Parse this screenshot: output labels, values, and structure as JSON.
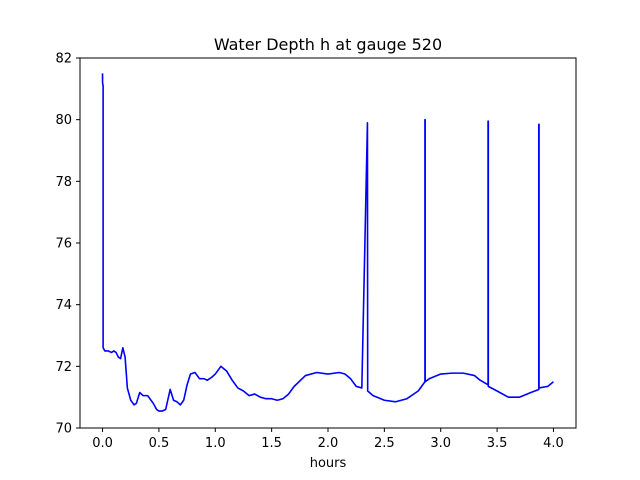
{
  "chart_data": {
    "type": "line",
    "title": "Water Depth h at gauge 520",
    "xlabel": "hours",
    "ylabel": "",
    "xlim": [
      -0.2,
      4.2
    ],
    "ylim": [
      70,
      82
    ],
    "xticks": [
      0.0,
      0.5,
      1.0,
      1.5,
      2.0,
      2.5,
      3.0,
      3.5,
      4.0
    ],
    "xtick_labels": [
      "0.0",
      "0.5",
      "1.0",
      "1.5",
      "2.0",
      "2.5",
      "3.0",
      "3.5",
      "4.0"
    ],
    "yticks": [
      70,
      72,
      74,
      76,
      78,
      80,
      82
    ],
    "ytick_labels": [
      "70",
      "72",
      "74",
      "76",
      "78",
      "80",
      "82"
    ],
    "grid": false,
    "legend": "none",
    "series": [
      {
        "color": "#0000ff",
        "x": [
          0.0,
          0.0,
          0.005,
          0.005,
          0.006,
          0.02,
          0.05,
          0.08,
          0.1,
          0.12,
          0.14,
          0.16,
          0.18,
          0.2,
          0.22,
          0.25,
          0.28,
          0.3,
          0.33,
          0.36,
          0.4,
          0.45,
          0.48,
          0.5,
          0.53,
          0.56,
          0.6,
          0.63,
          0.66,
          0.69,
          0.72,
          0.75,
          0.78,
          0.82,
          0.86,
          0.9,
          0.93,
          0.97,
          1.0,
          1.05,
          1.1,
          1.15,
          1.2,
          1.25,
          1.3,
          1.35,
          1.4,
          1.45,
          1.5,
          1.55,
          1.6,
          1.65,
          1.7,
          1.8,
          1.9,
          2.0,
          2.1,
          2.15,
          2.2,
          2.25,
          2.3,
          2.35,
          2.35,
          2.352,
          2.352,
          2.4,
          2.5,
          2.6,
          2.7,
          2.8,
          2.86,
          2.86,
          2.862,
          2.862,
          2.9,
          3.0,
          3.1,
          3.2,
          3.3,
          3.35,
          3.42,
          3.42,
          3.422,
          3.422,
          3.5,
          3.6,
          3.7,
          3.8,
          3.87,
          3.87,
          3.872,
          3.872,
          3.95,
          4.0
        ],
        "y": [
          81.5,
          81.2,
          81.1,
          72.6,
          72.6,
          72.5,
          72.5,
          72.45,
          72.5,
          72.45,
          72.3,
          72.25,
          72.6,
          72.3,
          71.3,
          70.9,
          70.75,
          70.8,
          71.15,
          71.05,
          71.05,
          70.8,
          70.6,
          70.55,
          70.55,
          70.6,
          71.25,
          70.9,
          70.85,
          70.75,
          70.9,
          71.4,
          71.75,
          71.8,
          71.6,
          71.6,
          71.55,
          71.65,
          71.75,
          72.0,
          71.85,
          71.55,
          71.3,
          71.2,
          71.05,
          71.1,
          71.0,
          70.95,
          70.95,
          70.9,
          70.95,
          71.1,
          71.35,
          71.7,
          71.8,
          71.75,
          71.8,
          71.75,
          71.6,
          71.35,
          71.3,
          79.9,
          79.9,
          71.2,
          71.2,
          71.05,
          70.9,
          70.85,
          70.95,
          71.2,
          71.5,
          80.0,
          80.0,
          71.5,
          71.6,
          71.75,
          71.78,
          71.78,
          71.7,
          71.55,
          71.4,
          79.95,
          79.95,
          71.35,
          71.2,
          71.0,
          71.0,
          71.15,
          71.25,
          79.85,
          79.85,
          71.3,
          71.35,
          71.5
        ]
      }
    ]
  }
}
